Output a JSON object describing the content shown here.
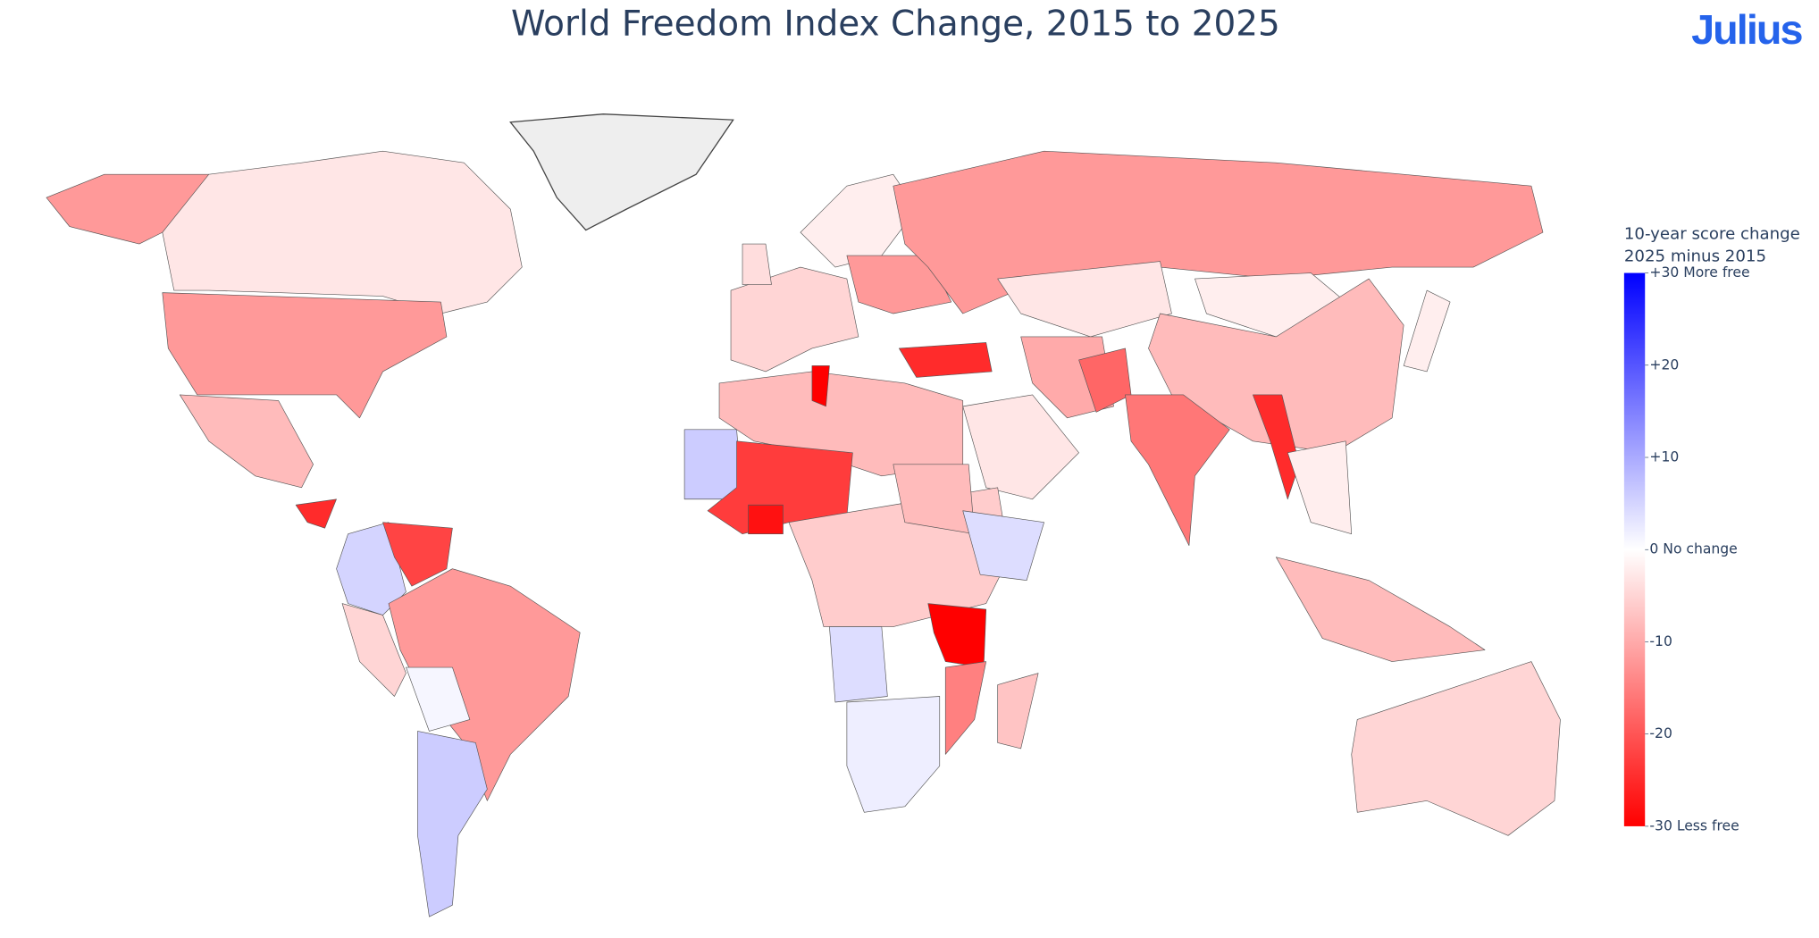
{
  "logo": "Julius",
  "chart_data": {
    "type": "choropleth",
    "title": "World Freedom Index Change, 2015 to 2025",
    "colorbar_title": [
      "10-year score change",
      "2025 minus 2015"
    ],
    "zlim": [
      -30,
      30
    ],
    "zticks": [
      {
        "value": 30,
        "label": "+30 More free"
      },
      {
        "value": 20,
        "label": "+20"
      },
      {
        "value": 10,
        "label": "+10"
      },
      {
        "value": 0,
        "label": "0 No change"
      },
      -10,
      -20,
      {
        "value": -30,
        "label": "-30 Less free"
      }
    ],
    "colorscale": [
      "#ff0000",
      "#ffffff",
      "#0000ff"
    ],
    "values": [
      -3,
      -12,
      -12,
      -8,
      -25,
      5,
      -22,
      -5,
      -12,
      1,
      6,
      -5,
      -2,
      -12,
      -12,
      -25,
      -3,
      -2,
      -8,
      -10,
      -3,
      -18,
      -16,
      -25,
      -2,
      -8,
      -5,
      -8,
      -30,
      6,
      -23,
      -28,
      -6,
      -8,
      4,
      -30,
      -15,
      4,
      2,
      -7,
      -2,
      -4
    ]
  }
}
